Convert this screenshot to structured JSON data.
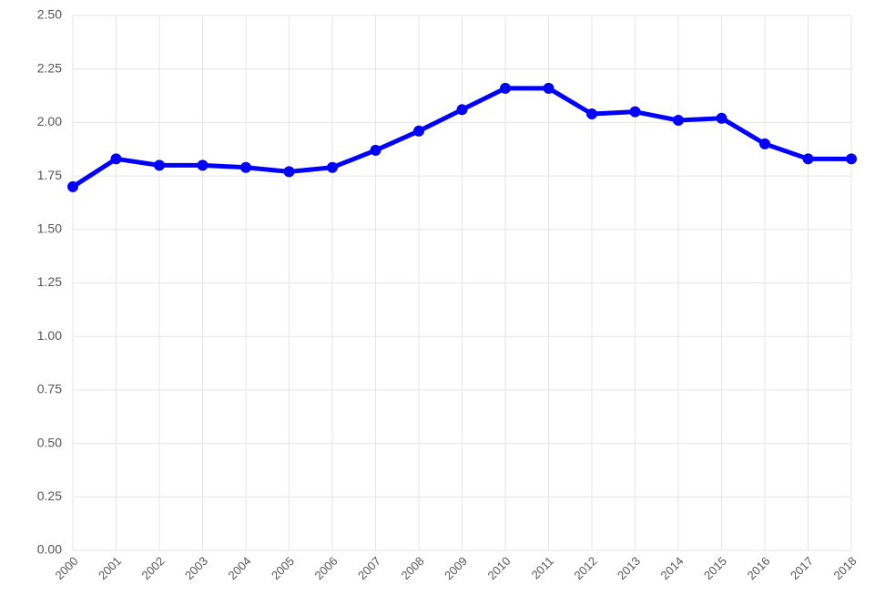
{
  "chart_data": {
    "type": "line",
    "categories": [
      "2000",
      "2001",
      "2002",
      "2003",
      "2004",
      "2005",
      "2006",
      "2007",
      "2008",
      "2009",
      "2010",
      "2011",
      "2012",
      "2013",
      "2014",
      "2015",
      "2016",
      "2017",
      "2018"
    ],
    "series": [
      {
        "color": "#0000ff",
        "values": [
          1.7,
          1.83,
          1.8,
          1.8,
          1.79,
          1.77,
          1.79,
          1.87,
          1.96,
          2.06,
          2.16,
          2.16,
          2.04,
          2.05,
          2.01,
          2.02,
          1.9,
          1.83,
          1.83
        ]
      }
    ],
    "ylim": [
      0,
      2.5
    ],
    "yticks": [
      {
        "value": 0,
        "label": "0.00"
      },
      {
        "value": 0.25,
        "label": "0.25"
      },
      {
        "value": 0.5,
        "label": "0.50"
      },
      {
        "value": 0.75,
        "label": "0.75"
      },
      {
        "value": 1,
        "label": "1.00"
      },
      {
        "value": 1.25,
        "label": "1.25"
      },
      {
        "value": 1.5,
        "label": "1.50"
      },
      {
        "value": 1.75,
        "label": "1.75"
      },
      {
        "value": 2,
        "label": "2.00"
      },
      {
        "value": 2.25,
        "label": "2.25"
      },
      {
        "value": 2.5,
        "label": "2.50"
      }
    ],
    "grid": true
  }
}
